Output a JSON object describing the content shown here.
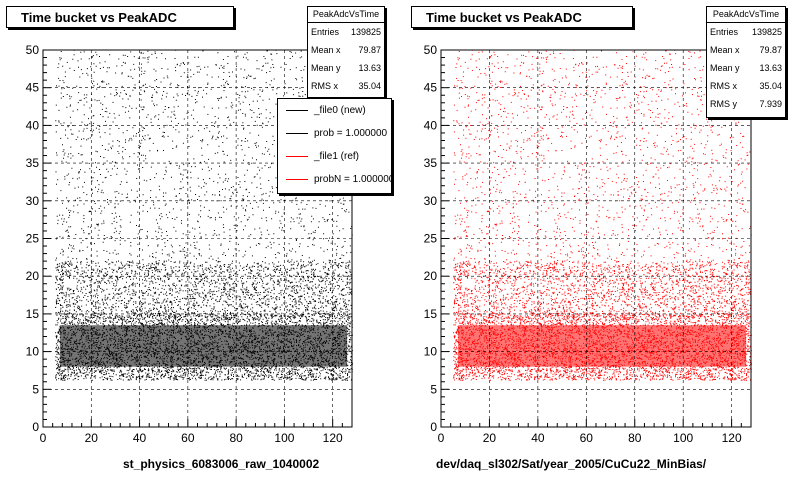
{
  "panels": [
    {
      "title": "Time bucket vs PeakADC",
      "xlabel": "st_physics_6083006_raw_1040002",
      "color": "#000000",
      "stats": {
        "title": "PeakAdcVsTime",
        "rows": [
          {
            "label": "Entries",
            "value": "139825"
          },
          {
            "label": "Mean x",
            "value": "79.87"
          },
          {
            "label": "Mean y",
            "value": "13.63"
          },
          {
            "label": "RMS x",
            "value": "35.04"
          }
        ]
      },
      "legend": [
        {
          "label": "_file0 (new)",
          "color": "#000000"
        },
        {
          "label": "prob = 1.000000",
          "color": "#000000"
        },
        {
          "label": "_file1 (ref)",
          "color": "#ff0000"
        },
        {
          "label": "probN = 1.000000",
          "color": "#ff0000"
        }
      ]
    },
    {
      "title": "Time bucket vs PeakADC",
      "xlabel": "dev/daq_sl302/Sat/year_2005/CuCu22_MinBias/",
      "color": "#ff0000",
      "stats": {
        "title": "PeakAdcVsTime",
        "rows": [
          {
            "label": "Entries",
            "value": "139825"
          },
          {
            "label": "Mean x",
            "value": "79.87"
          },
          {
            "label": "Mean y",
            "value": "13.63"
          },
          {
            "label": "RMS x",
            "value": "35.04"
          },
          {
            "label": "RMS y",
            "value": "7.939"
          }
        ]
      }
    }
  ],
  "chart_data": [
    {
      "type": "scatter",
      "title": "Time bucket vs PeakADC",
      "xlabel": "st_physics_6083006_raw_1040002",
      "ylabel": "",
      "xlim": [
        0,
        128
      ],
      "ylim": [
        0,
        50
      ],
      "xticks": [
        0,
        20,
        40,
        60,
        80,
        100,
        120
      ],
      "yticks": [
        0,
        5,
        10,
        15,
        20,
        25,
        30,
        35,
        40,
        45,
        50
      ],
      "grid": true,
      "color": "#000000",
      "series": [
        {
          "name": "_file0 (new)",
          "entries": 139825,
          "mean_x": 79.87,
          "mean_y": 13.63,
          "rms_x": 35.04,
          "x_range": [
            5,
            128
          ],
          "y_range": [
            6,
            50
          ],
          "dense_band_y": [
            7,
            15
          ]
        }
      ]
    },
    {
      "type": "scatter",
      "title": "Time bucket vs PeakADC",
      "xlabel": "dev/daq_sl302/Sat/year_2005/CuCu22_MinBias/",
      "ylabel": "",
      "xlim": [
        0,
        128
      ],
      "ylim": [
        0,
        50
      ],
      "xticks": [
        0,
        20,
        40,
        60,
        80,
        100,
        120
      ],
      "yticks": [
        0,
        5,
        10,
        15,
        20,
        25,
        30,
        35,
        40,
        45,
        50
      ],
      "grid": true,
      "color": "#ff0000",
      "series": [
        {
          "name": "_file1 (ref)",
          "entries": 139825,
          "mean_x": 79.87,
          "mean_y": 13.63,
          "rms_x": 35.04,
          "rms_y": 7.939,
          "x_range": [
            5,
            128
          ],
          "y_range": [
            6,
            50
          ],
          "dense_band_y": [
            7,
            15
          ]
        }
      ]
    }
  ]
}
